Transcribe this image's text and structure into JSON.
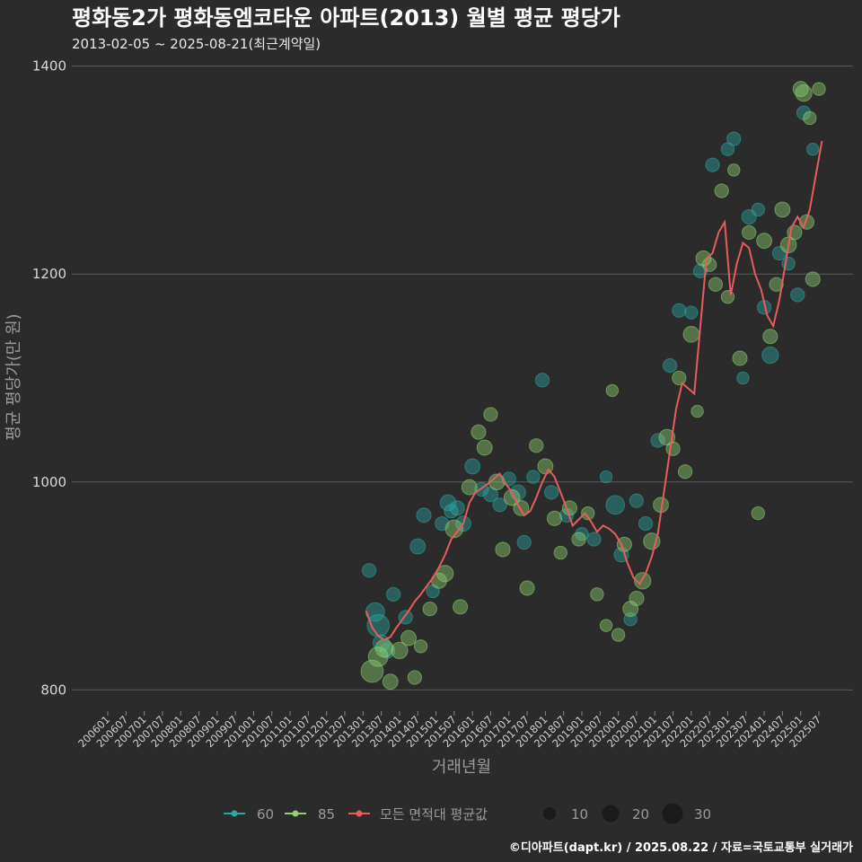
{
  "chart_data": {
    "type": "scatter",
    "title": "평화동2가 평화동엠코타운 아파트(2013) 월별 평균 평당가",
    "subtitle": "2013-02-05 ~ 2025-08-21(최근계약일)",
    "xlabel": "거래년월",
    "ylabel": "평균 평당가(만 원)",
    "ylim": [
      790,
      1410
    ],
    "yticks": [
      800,
      1000,
      1200,
      1400
    ],
    "x_start": "2006-01",
    "x_end": "2025-08",
    "x_ticks": [
      "200601",
      "200607",
      "200701",
      "200707",
      "200801",
      "200807",
      "200901",
      "200907",
      "201001",
      "201007",
      "201101",
      "201107",
      "201201",
      "201207",
      "201301",
      "201307",
      "201401",
      "201407",
      "201501",
      "201507",
      "201601",
      "201607",
      "201701",
      "201707",
      "201801",
      "201807",
      "201901",
      "201907",
      "202001",
      "202007",
      "202101",
      "202107",
      "202201",
      "202207",
      "202301",
      "202307",
      "202401",
      "202407",
      "202501",
      "202507"
    ],
    "colors": {
      "s60": "#2aa7a4",
      "s85": "#8fd16f",
      "avg": "#e85c5c",
      "bg": "#2b2b2b",
      "grid": "#5a5a5a"
    },
    "legend": {
      "series": [
        "60",
        "85",
        "모든 면적대 평균값"
      ],
      "sizes": [
        {
          "label": "10",
          "value": 10
        },
        {
          "label": "20",
          "value": 20
        },
        {
          "label": "30",
          "value": 30
        }
      ]
    },
    "avg_line": [
      [
        "2013-02",
        876
      ],
      [
        "2013-04",
        860
      ],
      [
        "2013-06",
        852
      ],
      [
        "2013-08",
        848
      ],
      [
        "2013-10",
        851
      ],
      [
        "2013-12",
        860
      ],
      [
        "2014-02",
        868
      ],
      [
        "2014-04",
        876
      ],
      [
        "2014-06",
        885
      ],
      [
        "2014-08",
        892
      ],
      [
        "2014-10",
        900
      ],
      [
        "2014-12",
        908
      ],
      [
        "2015-02",
        918
      ],
      [
        "2015-04",
        930
      ],
      [
        "2015-06",
        945
      ],
      [
        "2015-08",
        952
      ],
      [
        "2015-10",
        960
      ],
      [
        "2015-12",
        980
      ],
      [
        "2016-02",
        990
      ],
      [
        "2016-04",
        994
      ],
      [
        "2016-06",
        998
      ],
      [
        "2016-08",
        1003
      ],
      [
        "2016-10",
        1008
      ],
      [
        "2016-12",
        998
      ],
      [
        "2017-02",
        990
      ],
      [
        "2017-04",
        978
      ],
      [
        "2017-06",
        968
      ],
      [
        "2017-08",
        972
      ],
      [
        "2017-10",
        985
      ],
      [
        "2017-12",
        1000
      ],
      [
        "2018-02",
        1012
      ],
      [
        "2018-04",
        1005
      ],
      [
        "2018-06",
        990
      ],
      [
        "2018-08",
        975
      ],
      [
        "2018-10",
        958
      ],
      [
        "2018-12",
        964
      ],
      [
        "2019-02",
        970
      ],
      [
        "2019-04",
        962
      ],
      [
        "2019-06",
        952
      ],
      [
        "2019-08",
        958
      ],
      [
        "2019-10",
        955
      ],
      [
        "2019-12",
        950
      ],
      [
        "2020-02",
        940
      ],
      [
        "2020-04",
        922
      ],
      [
        "2020-06",
        908
      ],
      [
        "2020-08",
        902
      ],
      [
        "2020-10",
        912
      ],
      [
        "2020-12",
        928
      ],
      [
        "2021-02",
        950
      ],
      [
        "2021-04",
        990
      ],
      [
        "2021-06",
        1030
      ],
      [
        "2021-08",
        1070
      ],
      [
        "2021-10",
        1095
      ],
      [
        "2021-12",
        1090
      ],
      [
        "2022-02",
        1085
      ],
      [
        "2022-04",
        1150
      ],
      [
        "2022-06",
        1215
      ],
      [
        "2022-08",
        1220
      ],
      [
        "2022-10",
        1240
      ],
      [
        "2022-12",
        1250
      ],
      [
        "2023-02",
        1180
      ],
      [
        "2023-04",
        1210
      ],
      [
        "2023-06",
        1230
      ],
      [
        "2023-08",
        1225
      ],
      [
        "2023-10",
        1200
      ],
      [
        "2023-12",
        1185
      ],
      [
        "2024-02",
        1160
      ],
      [
        "2024-04",
        1150
      ],
      [
        "2024-06",
        1175
      ],
      [
        "2024-08",
        1210
      ],
      [
        "2024-10",
        1245
      ],
      [
        "2024-12",
        1255
      ],
      [
        "2025-02",
        1245
      ],
      [
        "2025-04",
        1262
      ],
      [
        "2025-06",
        1295
      ],
      [
        "2025-08",
        1328
      ]
    ],
    "series": [
      {
        "name": "60",
        "points": [
          [
            "2013-03",
            915,
            6
          ],
          [
            "2013-05",
            875,
            14
          ],
          [
            "2013-06",
            862,
            22
          ],
          [
            "2013-07",
            845,
            10
          ],
          [
            "2013-09",
            838,
            8
          ],
          [
            "2013-11",
            892,
            6
          ],
          [
            "2014-03",
            870,
            6
          ],
          [
            "2014-07",
            938,
            8
          ],
          [
            "2014-09",
            968,
            7
          ],
          [
            "2014-12",
            895,
            5
          ],
          [
            "2015-03",
            960,
            6
          ],
          [
            "2015-05",
            980,
            9
          ],
          [
            "2015-06",
            972,
            6
          ],
          [
            "2015-08",
            975,
            7
          ],
          [
            "2015-10",
            960,
            8
          ],
          [
            "2016-01",
            1015,
            8
          ],
          [
            "2016-04",
            993,
            6
          ],
          [
            "2016-07",
            988,
            7
          ],
          [
            "2016-10",
            978,
            6
          ],
          [
            "2017-01",
            1003,
            6
          ],
          [
            "2017-04",
            990,
            8
          ],
          [
            "2017-06",
            942,
            6
          ],
          [
            "2017-09",
            1005,
            5
          ],
          [
            "2017-12",
            1098,
            6
          ],
          [
            "2018-03",
            990,
            6
          ],
          [
            "2018-08",
            968,
            6
          ],
          [
            "2019-01",
            950,
            5
          ],
          [
            "2019-05",
            945,
            6
          ],
          [
            "2019-09",
            1005,
            4
          ],
          [
            "2019-12",
            978,
            14
          ],
          [
            "2020-02",
            930,
            7
          ],
          [
            "2020-05",
            868,
            5
          ],
          [
            "2020-07",
            982,
            6
          ],
          [
            "2020-10",
            960,
            6
          ],
          [
            "2021-02",
            1040,
            6
          ],
          [
            "2021-06",
            1112,
            6
          ],
          [
            "2021-09",
            1165,
            6
          ],
          [
            "2022-01",
            1163,
            5
          ],
          [
            "2022-04",
            1203,
            6
          ],
          [
            "2022-08",
            1305,
            6
          ],
          [
            "2023-01",
            1320,
            5
          ],
          [
            "2023-03",
            1330,
            6
          ],
          [
            "2023-06",
            1100,
            4
          ],
          [
            "2023-08",
            1255,
            7
          ],
          [
            "2023-11",
            1262,
            5
          ],
          [
            "2024-01",
            1168,
            6
          ],
          [
            "2024-03",
            1122,
            10
          ],
          [
            "2024-06",
            1220,
            6
          ],
          [
            "2024-09",
            1210,
            5
          ],
          [
            "2024-12",
            1180,
            6
          ],
          [
            "2025-02",
            1355,
            6
          ],
          [
            "2025-05",
            1320,
            4
          ]
        ]
      },
      {
        "name": "85",
        "points": [
          [
            "2013-04",
            818,
            22
          ],
          [
            "2013-06",
            832,
            16
          ],
          [
            "2013-08",
            840,
            12
          ],
          [
            "2013-10",
            808,
            8
          ],
          [
            "2014-01",
            838,
            10
          ],
          [
            "2014-04",
            850,
            8
          ],
          [
            "2014-06",
            812,
            6
          ],
          [
            "2014-08",
            842,
            5
          ],
          [
            "2014-11",
            878,
            6
          ],
          [
            "2015-02",
            905,
            8
          ],
          [
            "2015-04",
            912,
            10
          ],
          [
            "2015-07",
            955,
            12
          ],
          [
            "2015-09",
            880,
            7
          ],
          [
            "2015-12",
            995,
            8
          ],
          [
            "2016-03",
            1048,
            7
          ],
          [
            "2016-05",
            1033,
            8
          ],
          [
            "2016-07",
            1065,
            6
          ],
          [
            "2016-09",
            1000,
            9
          ],
          [
            "2016-11",
            935,
            7
          ],
          [
            "2017-02",
            985,
            9
          ],
          [
            "2017-05",
            975,
            8
          ],
          [
            "2017-07",
            898,
            7
          ],
          [
            "2017-10",
            1035,
            6
          ],
          [
            "2018-01",
            1015,
            8
          ],
          [
            "2018-04",
            965,
            7
          ],
          [
            "2018-06",
            932,
            5
          ],
          [
            "2018-09",
            975,
            7
          ],
          [
            "2018-12",
            945,
            6
          ],
          [
            "2019-03",
            970,
            5
          ],
          [
            "2019-06",
            892,
            5
          ],
          [
            "2019-09",
            862,
            4
          ],
          [
            "2019-11",
            1088,
            4
          ],
          [
            "2020-01",
            853,
            5
          ],
          [
            "2020-03",
            940,
            7
          ],
          [
            "2020-05",
            878,
            8
          ],
          [
            "2020-07",
            888,
            7
          ],
          [
            "2020-09",
            905,
            10
          ],
          [
            "2020-12",
            943,
            10
          ],
          [
            "2021-03",
            978,
            8
          ],
          [
            "2021-05",
            1043,
            9
          ],
          [
            "2021-07",
            1032,
            6
          ],
          [
            "2021-09",
            1100,
            6
          ],
          [
            "2021-11",
            1010,
            6
          ],
          [
            "2022-01",
            1142,
            9
          ],
          [
            "2022-03",
            1068,
            4
          ],
          [
            "2022-05",
            1215,
            8
          ],
          [
            "2022-07",
            1209,
            6
          ],
          [
            "2022-09",
            1190,
            6
          ],
          [
            "2022-11",
            1280,
            6
          ],
          [
            "2023-01",
            1178,
            5
          ],
          [
            "2023-03",
            1300,
            4
          ],
          [
            "2023-05",
            1119,
            7
          ],
          [
            "2023-08",
            1240,
            6
          ],
          [
            "2023-11",
            970,
            5
          ],
          [
            "2024-01",
            1232,
            8
          ],
          [
            "2024-03",
            1140,
            7
          ],
          [
            "2024-05",
            1190,
            6
          ],
          [
            "2024-07",
            1262,
            8
          ],
          [
            "2024-09",
            1228,
            9
          ],
          [
            "2024-11",
            1240,
            7
          ],
          [
            "2025-01",
            1378,
            8
          ],
          [
            "2025-02",
            1374,
            10
          ],
          [
            "2025-03",
            1250,
            7
          ],
          [
            "2025-04",
            1350,
            5
          ],
          [
            "2025-05",
            1195,
            7
          ],
          [
            "2025-07",
            1378,
            5
          ]
        ]
      }
    ]
  },
  "source": "©디아파트(dapt.kr) / 2025.08.22 / 자료=국토교통부 실거래가"
}
